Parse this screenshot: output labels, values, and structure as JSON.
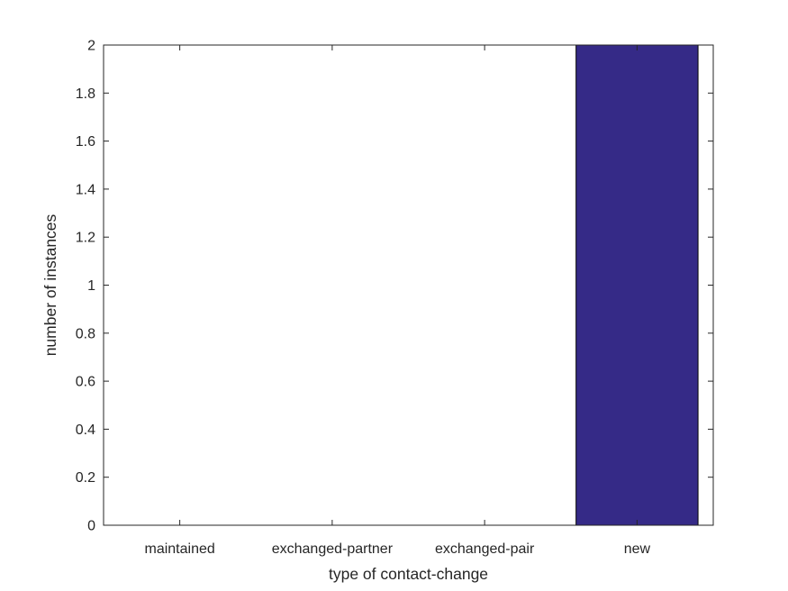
{
  "chart_data": {
    "type": "bar",
    "title": "",
    "categories": [
      "maintained",
      "exchanged-partner",
      "exchanged-pair",
      "new"
    ],
    "values": [
      0,
      0,
      0,
      2
    ],
    "xlabel": "type of contact-change",
    "ylabel": "number of instances",
    "ylim": [
      0,
      2
    ],
    "ytick_step": 0.2,
    "ytick_labels": [
      "0",
      "0.2",
      "0.4",
      "0.6",
      "0.8",
      "1",
      "1.2",
      "1.4",
      "1.6",
      "1.8",
      "2"
    ],
    "bar_width_fraction": 0.8,
    "grid": false,
    "legend_position": "none",
    "colors": {
      "bar_fill": "#352A87",
      "bar_edge": "#000000",
      "axis": "#262626",
      "text": "#262626",
      "background": "#FFFFFF"
    }
  }
}
